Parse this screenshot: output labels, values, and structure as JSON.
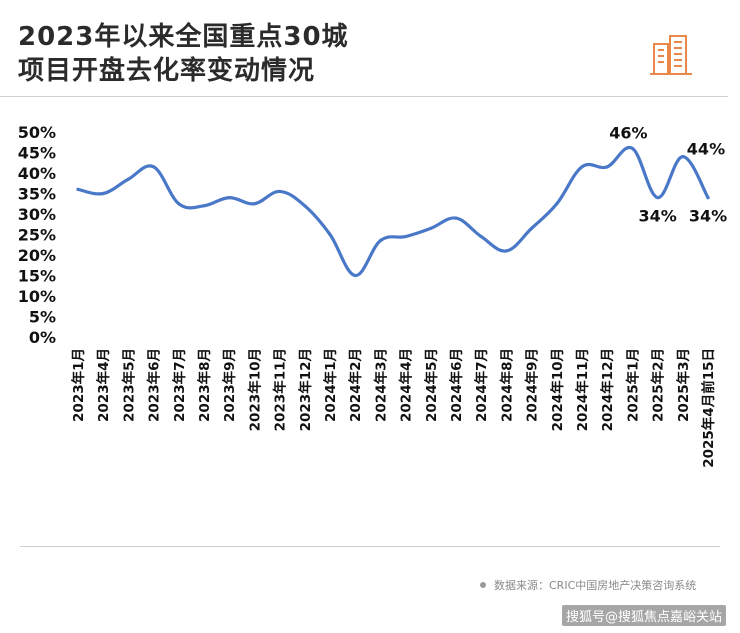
{
  "title_lines": [
    "2023年以来全国重点30城",
    "项目开盘去化率变动情况"
  ],
  "source_text": "数据来源：CRIC中国房地产决策咨询系统",
  "credit_text": "搜狐号@搜狐焦点嘉峪关站",
  "colors": {
    "line": "#4a78c8",
    "accent_logo": "#e8894a",
    "text": "#111111"
  },
  "chart_data": {
    "type": "line",
    "title": "2023年以来全国重点30城项目开盘去化率变动情况",
    "categories": [
      "2023年1月",
      "2023年4月",
      "2023年5月",
      "2023年6月",
      "2023年7月",
      "2023年8月",
      "2023年9月",
      "2023年10月",
      "2023年11月",
      "2023年12月",
      "2024年1月",
      "2024年2月",
      "2024年3月",
      "2024年4月",
      "2024年5月",
      "2024年6月",
      "2024年7月",
      "2024年8月",
      "2024年9月",
      "2024年10月",
      "2024年11月",
      "2024年12月",
      "2025年1月",
      "2025年2月",
      "2025年3月",
      "2025年4月前15日"
    ],
    "series": [
      {
        "values": [
          36,
          35,
          38.5,
          41.5,
          32.5,
          32,
          34,
          32.5,
          35.5,
          32,
          25,
          15,
          23.5,
          24.5,
          26.5,
          29,
          24.5,
          21,
          26.5,
          32.5,
          41.5,
          41.5,
          46,
          34,
          44,
          34
        ]
      }
    ],
    "ylim": [
      0,
      50
    ],
    "yticks": [
      0,
      5,
      10,
      15,
      20,
      25,
      30,
      35,
      40,
      45,
      50
    ],
    "ytick_labels": [
      "0%",
      "5%",
      "10%",
      "15%",
      "20%",
      "25%",
      "30%",
      "35%",
      "40%",
      "45%",
      "50%"
    ],
    "annotations": [
      {
        "index": 22,
        "text": "46%",
        "position": "above"
      },
      {
        "index": 23,
        "text": "34%",
        "position": "below"
      },
      {
        "index": 24,
        "text": "44%",
        "position": "right"
      },
      {
        "index": 25,
        "text": "34%",
        "position": "below"
      }
    ],
    "grid": false,
    "legend": "none"
  }
}
